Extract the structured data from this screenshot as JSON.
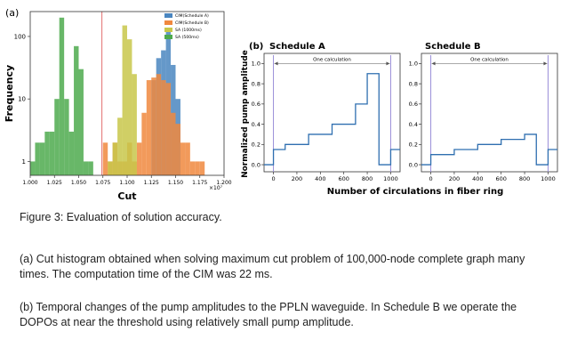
{
  "panel_a": {
    "label": "(a)",
    "xlabel": "Cut",
    "ylabel": "Frequency",
    "x_multiplier": "×10⁷",
    "x_ticks": [
      "1.000",
      "1.025",
      "1.050",
      "1.075",
      "1.100",
      "1.125",
      "1.150",
      "1.175",
      "1.200"
    ],
    "y_ticks": [
      "1",
      "10",
      "100"
    ],
    "threshold_line": 1.074,
    "colors": {
      "cim_a": "#4a86c0",
      "cim_b": "#f0883e",
      "sa1000": "#c8c74a",
      "sa500": "#4daa4d",
      "threshold": "#e06060"
    }
  },
  "panel_b": {
    "label": "(b)",
    "ylabel": "Normalized pump amplitude",
    "xlabel": "Number of circulations in fiber ring",
    "schedule_a_title": "Schedule A",
    "schedule_b_title": "Schedule B",
    "annotation": "One calculation",
    "x_ticks": [
      "0",
      "200",
      "400",
      "600",
      "800",
      "1000"
    ],
    "y_ticks": [
      "0.0",
      "0.2",
      "0.4",
      "0.6",
      "0.8",
      "1.0"
    ],
    "line_color": "#2f6fb0",
    "boundary_color": "#9a8fd8"
  },
  "chart_data": [
    {
      "type": "bar",
      "title": "",
      "xlabel": "Cut",
      "ylabel": "Frequency",
      "x_scale_note": "×10^7",
      "xlim": [
        1.0,
        1.2
      ],
      "ylim": [
        0.6,
        250
      ],
      "yscale": "log",
      "grid": false,
      "legend_position": "top-right",
      "series": [
        {
          "name": "CIM(Schedule A)",
          "color": "#4a86c0",
          "bins": [
            [
              1.125,
              1.13,
              20
            ],
            [
              1.13,
              1.135,
              45
            ],
            [
              1.135,
              1.14,
              60
            ],
            [
              1.14,
              1.145,
              120
            ],
            [
              1.145,
              1.15,
              35
            ],
            [
              1.15,
              1.155,
              10
            ]
          ]
        },
        {
          "name": "CIM(Schedule B)",
          "color": "#f0883e",
          "bins": [
            [
              1.075,
              1.08,
              2
            ],
            [
              1.08,
              1.085,
              1
            ],
            [
              1.085,
              1.09,
              2
            ],
            [
              1.09,
              1.095,
              1
            ],
            [
              1.095,
              1.1,
              1
            ],
            [
              1.1,
              1.105,
              2
            ],
            [
              1.105,
              1.11,
              1
            ],
            [
              1.11,
              1.115,
              2
            ],
            [
              1.115,
              1.12,
              6
            ],
            [
              1.12,
              1.125,
              20
            ],
            [
              1.125,
              1.13,
              22
            ],
            [
              1.13,
              1.135,
              25
            ],
            [
              1.135,
              1.14,
              20
            ],
            [
              1.14,
              1.145,
              18
            ],
            [
              1.145,
              1.15,
              6
            ],
            [
              1.15,
              1.155,
              4
            ],
            [
              1.155,
              1.16,
              2
            ],
            [
              1.16,
              1.165,
              2
            ],
            [
              1.165,
              1.17,
              1
            ],
            [
              1.17,
              1.175,
              1
            ],
            [
              1.175,
              1.18,
              1
            ]
          ]
        },
        {
          "name": "SA (1000ms)",
          "color": "#c8c74a",
          "bins": [
            [
              1.08,
              1.085,
              1
            ],
            [
              1.085,
              1.09,
              2
            ],
            [
              1.09,
              1.095,
              5
            ],
            [
              1.095,
              1.1,
              150
            ],
            [
              1.1,
              1.105,
              90
            ],
            [
              1.105,
              1.11,
              25
            ]
          ]
        },
        {
          "name": "SA (500ms)",
          "color": "#4daa4d",
          "bins": [
            [
              1.0,
              1.005,
              1
            ],
            [
              1.005,
              1.01,
              2
            ],
            [
              1.01,
              1.015,
              2
            ],
            [
              1.015,
              1.02,
              3
            ],
            [
              1.02,
              1.025,
              3
            ],
            [
              1.025,
              1.03,
              10
            ],
            [
              1.03,
              1.035,
              200
            ],
            [
              1.035,
              1.04,
              10
            ],
            [
              1.04,
              1.045,
              3
            ],
            [
              1.045,
              1.05,
              70
            ],
            [
              1.05,
              1.055,
              30
            ],
            [
              1.055,
              1.06,
              1
            ],
            [
              1.06,
              1.065,
              1
            ]
          ]
        }
      ]
    },
    {
      "type": "line",
      "title": "Schedule A",
      "xlabel": "Number of circulations in fiber ring",
      "ylabel": "Normalized pump amplitude",
      "xlim": [
        -80,
        1080
      ],
      "ylim": [
        -0.07,
        1.1
      ],
      "x": [
        -80,
        0,
        0,
        100,
        100,
        300,
        300,
        500,
        500,
        700,
        700,
        800,
        800,
        900,
        900,
        1000,
        1000,
        1080
      ],
      "y": [
        0.0,
        0.0,
        0.15,
        0.15,
        0.2,
        0.2,
        0.3,
        0.3,
        0.4,
        0.4,
        0.6,
        0.6,
        0.9,
        0.9,
        0.0,
        0.0,
        0.15,
        0.15
      ]
    },
    {
      "type": "line",
      "title": "Schedule B",
      "xlabel": "Number of circulations in fiber ring",
      "ylabel": "Normalized pump amplitude",
      "xlim": [
        -80,
        1080
      ],
      "ylim": [
        -0.07,
        1.1
      ],
      "x": [
        -80,
        0,
        0,
        200,
        200,
        400,
        400,
        600,
        600,
        800,
        800,
        900,
        900,
        1000,
        1000,
        1080
      ],
      "y": [
        0.0,
        0.0,
        0.1,
        0.1,
        0.15,
        0.15,
        0.2,
        0.2,
        0.25,
        0.25,
        0.3,
        0.3,
        0.0,
        0.0,
        0.15,
        0.15
      ]
    }
  ],
  "caption": {
    "title": "Figure 3: Evaluation of solution accuracy.",
    "para_a": "(a) Cut histogram obtained when solving maximum cut problem of 100,000-node complete graph many times. The computation time of the CIM was 22 ms.",
    "para_b": " (b) Temporal changes of the pump amplitudes to the PPLN waveguide. In Schedule B we operate the DOPOs at near the threshold using relatively small pump amplitude."
  }
}
